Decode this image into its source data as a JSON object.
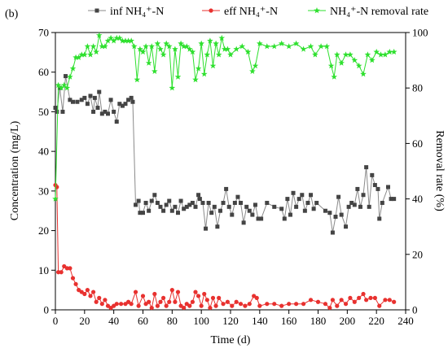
{
  "chart_data": {
    "type": "line",
    "annotation": "(b)",
    "xlabel": "Time (d)",
    "ylabel": "Concentration (mg/L)",
    "y2label": "Removal rate (%)",
    "xlim": [
      0,
      240
    ],
    "xticks": [
      0,
      20,
      40,
      60,
      80,
      100,
      120,
      140,
      160,
      180,
      200,
      220,
      240
    ],
    "ylim": [
      0,
      70
    ],
    "yticks": [
      0,
      10,
      20,
      30,
      40,
      50,
      60,
      70
    ],
    "y2lim": [
      0,
      100
    ],
    "y2ticks": [
      0,
      20,
      40,
      60,
      80,
      100
    ],
    "legend": "top",
    "series": [
      {
        "name": "inf NH₄⁺-N",
        "color": "#444444",
        "line_color": "#8a8a8a",
        "marker": "square",
        "axis": "y",
        "x": [
          0,
          1,
          3,
          5,
          7,
          10,
          12,
          15,
          18,
          20,
          22,
          24,
          26,
          27,
          29,
          30,
          32,
          34,
          36,
          38,
          40,
          42,
          44,
          46,
          48,
          50,
          52,
          53,
          55,
          57,
          58,
          60,
          62,
          64,
          66,
          68,
          70,
          72,
          74,
          76,
          78,
          80,
          82,
          84,
          86,
          88,
          90,
          92,
          94,
          96,
          98,
          99,
          101,
          103,
          105,
          107,
          109,
          111,
          113,
          115,
          117,
          119,
          121,
          123,
          125,
          127,
          129,
          131,
          133,
          135,
          137,
          139,
          141,
          145,
          150,
          155,
          157,
          159,
          161,
          163,
          165,
          167,
          169,
          171,
          173,
          175,
          177,
          179,
          185,
          188,
          190,
          192,
          194,
          196,
          199,
          201,
          203,
          205,
          207,
          209,
          211,
          213,
          215,
          217,
          219,
          221,
          222,
          224,
          228,
          230,
          232
        ],
        "values": [
          51,
          50,
          56,
          50,
          59,
          53,
          52.5,
          52.5,
          53,
          53.5,
          52,
          54,
          50,
          53.5,
          51,
          55,
          49.5,
          50,
          49.5,
          53,
          50,
          47.5,
          52,
          51.5,
          52,
          53,
          53.5,
          52.5,
          26.5,
          27.5,
          24.5,
          24.5,
          27,
          25,
          27.5,
          29,
          27,
          26,
          25,
          26.5,
          27.5,
          25,
          26,
          24.5,
          27.5,
          25.5,
          26,
          26.5,
          27,
          26,
          29,
          28,
          27,
          20.5,
          27,
          24.5,
          26,
          21,
          25,
          27,
          30.5,
          26,
          24,
          27,
          28.5,
          27,
          22,
          26,
          25,
          24,
          26.5,
          23,
          23,
          27,
          26,
          25.5,
          23,
          28,
          24,
          29.5,
          26,
          28,
          29,
          25,
          27,
          29,
          25.5,
          27,
          25,
          24.5,
          19.5,
          23.5,
          28.5,
          24,
          21,
          26,
          27,
          26.5,
          30.5,
          26,
          29,
          36,
          26,
          34,
          31.5,
          30.5,
          23,
          27,
          31,
          28,
          28
        ]
      },
      {
        "name": "eff NH₄⁺-N",
        "color": "#e8312f",
        "line_color": "#e8312f",
        "marker": "circle",
        "axis": "y",
        "x": [
          0,
          1,
          2,
          4,
          6,
          8,
          10,
          12,
          14,
          16,
          18,
          20,
          22,
          24,
          26,
          28,
          30,
          32,
          34,
          36,
          38,
          40,
          42,
          45,
          48,
          50,
          52,
          55,
          57,
          60,
          62,
          64,
          66,
          68,
          70,
          72,
          74,
          76,
          78,
          80,
          82,
          84,
          86,
          88,
          90,
          92,
          94,
          96,
          98,
          100,
          102,
          104,
          106,
          108,
          110,
          112,
          115,
          118,
          121,
          124,
          127,
          130,
          133,
          136,
          138,
          140,
          145,
          150,
          155,
          160,
          165,
          170,
          175,
          180,
          185,
          188,
          190,
          193,
          196,
          199,
          202,
          205,
          208,
          211,
          213,
          216,
          219,
          222,
          226,
          229,
          232
        ],
        "values": [
          31.5,
          31,
          9.5,
          9.5,
          11,
          10.5,
          10.5,
          8,
          6.5,
          5,
          4.5,
          4,
          5,
          3.5,
          4.5,
          2,
          3,
          1.5,
          2.5,
          1,
          0.5,
          1,
          1.5,
          1.5,
          1.5,
          2,
          1.5,
          4.5,
          1,
          3.5,
          1.5,
          2,
          0.5,
          4,
          1,
          2,
          3,
          1,
          2,
          5,
          2,
          4.5,
          1,
          0.5,
          1.5,
          1,
          2,
          4.5,
          3.5,
          1,
          4,
          2.5,
          0.5,
          3,
          1,
          3,
          1.5,
          2,
          1,
          2,
          1.5,
          1,
          1.5,
          3.5,
          3,
          1,
          1.5,
          1.5,
          1,
          1.5,
          1.5,
          1.5,
          2.5,
          2,
          1.5,
          0.5,
          2.5,
          1,
          2.5,
          1.5,
          3,
          2,
          3,
          4,
          2.5,
          3,
          3,
          1,
          2.5,
          2.5,
          2
        ]
      },
      {
        "name": "NH₄⁺-N removal rate",
        "color": "#2ee02e",
        "line_color": "#2ee02e",
        "marker": "star",
        "axis": "y2",
        "x": [
          0,
          2,
          4,
          6,
          8,
          10,
          12,
          14,
          16,
          18,
          20,
          22,
          24,
          26,
          28,
          30,
          32,
          34,
          36,
          38,
          40,
          42,
          44,
          46,
          48,
          50,
          52,
          54,
          56,
          58,
          60,
          62,
          64,
          66,
          68,
          70,
          72,
          74,
          76,
          78,
          80,
          82,
          84,
          86,
          88,
          90,
          92,
          94,
          96,
          98,
          100,
          102,
          104,
          106,
          108,
          110,
          112,
          114,
          116,
          118,
          120,
          124,
          128,
          132,
          135,
          137,
          140,
          145,
          150,
          155,
          160,
          165,
          170,
          175,
          178,
          182,
          186,
          189,
          191,
          193,
          196,
          199,
          202,
          205,
          208,
          211,
          214,
          217,
          220,
          223,
          226,
          229,
          232
        ],
        "values": [
          40,
          81,
          80,
          81,
          80,
          84,
          87,
          91,
          91,
          92,
          92,
          95,
          92,
          95,
          93,
          99,
          95,
          95,
          97,
          98,
          97,
          98,
          98,
          97,
          97,
          97,
          97,
          95,
          83,
          94,
          93,
          95,
          89,
          95,
          86,
          96,
          94,
          92,
          96,
          95,
          80,
          94,
          84,
          96,
          95,
          95,
          94,
          93,
          83,
          87,
          96,
          85,
          92,
          97,
          88,
          96,
          92,
          98,
          94,
          94,
          92,
          94,
          95,
          93,
          86,
          88,
          96,
          95,
          95,
          96,
          95,
          96,
          94,
          95,
          92,
          95,
          95,
          88,
          84,
          92,
          89,
          92,
          92,
          90,
          88,
          85,
          92,
          90,
          93,
          92,
          92,
          93,
          93
        ]
      }
    ]
  }
}
